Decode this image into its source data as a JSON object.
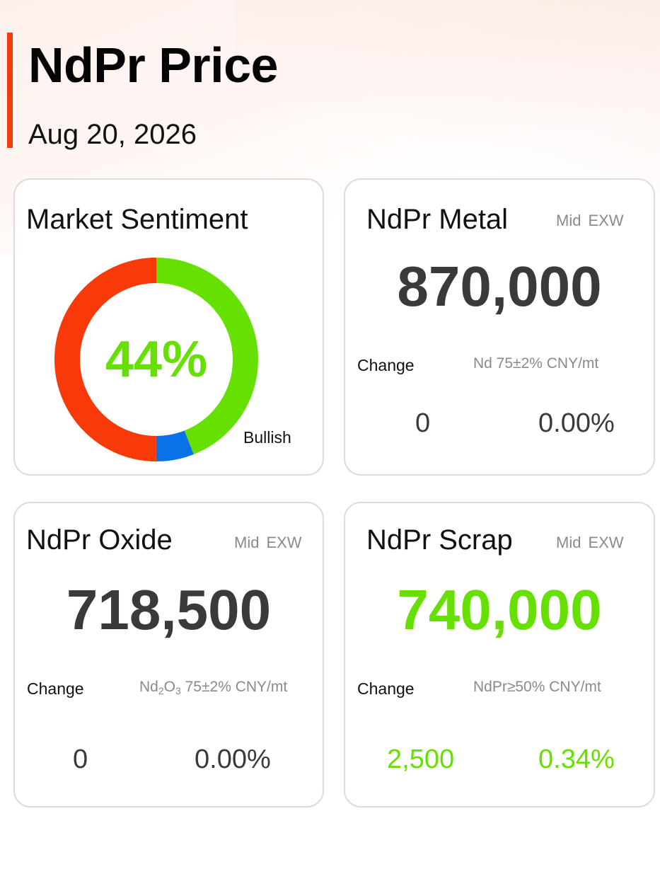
{
  "header": {
    "title": "NdPr Price",
    "date": "Aug 20, 2026",
    "accent_color": "#f23c0c"
  },
  "sentiment": {
    "title": "Market Sentiment",
    "value_label": "44%",
    "bullish_label": "Bullish",
    "segments": [
      {
        "name": "bullish",
        "fraction": 0.44,
        "color": "#66e000"
      },
      {
        "name": "neutral",
        "fraction": 0.06,
        "color": "#0a72e6"
      },
      {
        "name": "bearish",
        "fraction": 0.5,
        "color": "#f83a0a"
      }
    ]
  },
  "metal": {
    "title": "NdPr Metal",
    "tag1": "Mid",
    "tag2": "EXW",
    "price": "870,000",
    "change_label": "Change",
    "spec": "Nd 75±2% CNY/mt",
    "change_abs": "0",
    "change_pct": "0.00%"
  },
  "oxide": {
    "title": "NdPr Oxide",
    "tag1": "Mid",
    "tag2": "EXW",
    "price": "718,500",
    "change_label": "Change",
    "spec_prefix": "Nd",
    "spec_sub1": "2",
    "spec_mid": "O",
    "spec_sub2": "3",
    "spec_suffix": " 75±2% CNY/mt",
    "change_abs": "0",
    "change_pct": "0.00%"
  },
  "scrap": {
    "title": "NdPr Scrap",
    "tag1": "Mid",
    "tag2": "EXW",
    "price": "740,000",
    "change_label": "Change",
    "spec": "NdPr≥50% CNY/mt",
    "change_abs": "2,500",
    "change_pct": "0.34%"
  },
  "colors": {
    "up": "#66e000",
    "flat": "#3a3a3c",
    "border": "#dcdcdc"
  }
}
